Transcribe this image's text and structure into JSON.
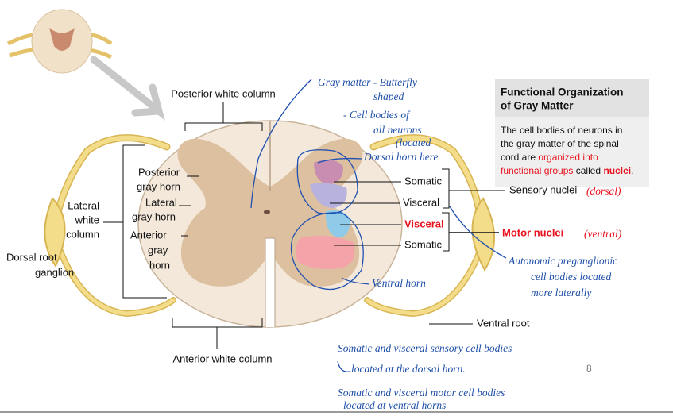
{
  "labels": {
    "posterior_white_column": "Posterior white column",
    "anterior_white_column": "Anterior white column",
    "lateral_white_column": [
      "Lateral",
      "white",
      "column"
    ],
    "dorsal_root_ganglion": [
      "Dorsal root",
      "ganglion"
    ],
    "posterior_gray_horn": [
      "Posterior",
      "gray horn"
    ],
    "lateral_gray_horn": [
      "Lateral",
      "gray horn"
    ],
    "anterior_gray_horn": [
      "Anterior",
      "gray",
      "horn"
    ],
    "somatic_sensory": "Somatic",
    "visceral_sensory": "Visceral",
    "visceral_motor": "Visceral",
    "somatic_motor": "Somatic",
    "sensory_nuclei": "Sensory nuclei",
    "motor_nuclei": "Motor nuclei",
    "ventral_root": "Ventral root"
  },
  "info_box": {
    "title": [
      "Functional Organization",
      "of Gray Matter"
    ],
    "lines": [
      [
        {
          "text": "The cell bodies of neurons in"
        }
      ],
      [
        {
          "text": "the gray matter of the spinal"
        }
      ],
      [
        {
          "text": "cord are "
        },
        {
          "text": "organized into",
          "color": "#e8101c"
        }
      ],
      [
        {
          "text": "functional groups",
          "color": "#e8101c"
        },
        {
          "text": " called "
        },
        {
          "text": "nuclei",
          "color": "#e8101c",
          "bold": true
        },
        {
          "text": "."
        }
      ]
    ]
  },
  "annotations": {
    "gray_matter": [
      "Gray matter - Butterfly",
      "shaped"
    ],
    "cell_bodies": [
      "- Cell bodies of",
      "all neurons",
      "(located",
      "here"
    ],
    "dorsal_horn": "Dorsal horn",
    "ventral_horn": "Ventral horn",
    "dorsal_note": "(dorsal)",
    "ventral_note": "(ventral)",
    "autonomic": [
      "Autonomic preganglionic",
      "cell bodies located",
      "more laterally"
    ],
    "summary": [
      "Somatic and visceral sensory cell bodies",
      "located at the dorsal horn.",
      "Somatic and visceral motor cell bodies",
      "located at ventral horns"
    ]
  },
  "page_number": "8"
}
